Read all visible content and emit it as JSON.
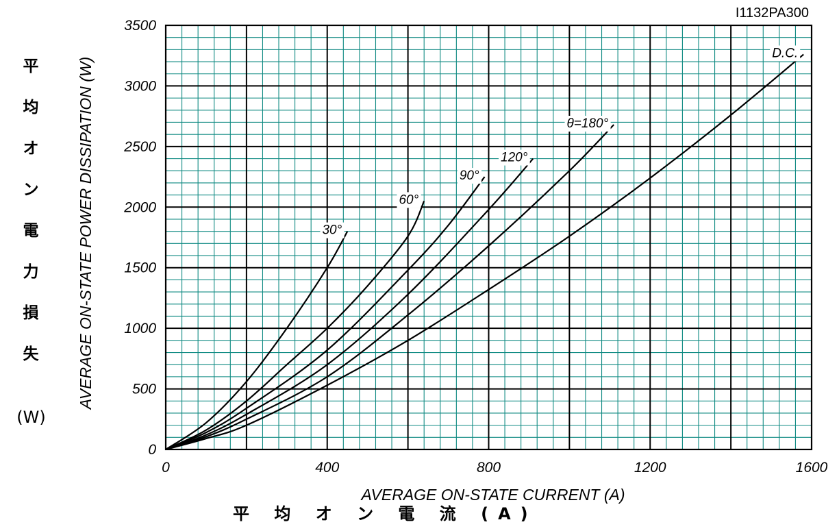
{
  "document_code": "I1132PA300",
  "jp_y_label": [
    "平",
    "均",
    "オ",
    "ン",
    "電",
    "力",
    "損",
    "失"
  ],
  "jp_y_unit": "(W)",
  "jp_x_label": "平 均 オ ン 電 流 (A)",
  "chart_data": {
    "type": "line",
    "xlabel": "AVERAGE ON-STATE CURRENT (A)",
    "ylabel": "AVERAGE ON-STATE POWER DISSIPATION (W)",
    "xlim": [
      0,
      1600
    ],
    "ylim": [
      0,
      3500
    ],
    "x_ticks": [
      0,
      400,
      800,
      1200,
      1600
    ],
    "y_ticks": [
      0,
      500,
      1000,
      1500,
      2000,
      2500,
      3000,
      3500
    ],
    "grid": true,
    "grid_color": "#0f8a82",
    "line_color": "#000000",
    "series": [
      {
        "name": "30°",
        "x": [
          0,
          100,
          200,
          300,
          400,
          450
        ],
        "y": [
          0,
          220,
          560,
          1000,
          1500,
          1800
        ]
      },
      {
        "name": "60°",
        "x": [
          0,
          100,
          200,
          300,
          400,
          500,
          600,
          640
        ],
        "y": [
          0,
          160,
          400,
          700,
          1000,
          1350,
          1760,
          2050
        ]
      },
      {
        "name": "90°",
        "x": [
          0,
          100,
          200,
          400,
          600,
          700,
          790
        ],
        "y": [
          0,
          140,
          340,
          820,
          1480,
          1850,
          2250
        ]
      },
      {
        "name": "120°",
        "x": [
          0,
          100,
          200,
          400,
          600,
          800,
          910
        ],
        "y": [
          0,
          120,
          290,
          700,
          1280,
          1980,
          2400
        ]
      },
      {
        "name": "θ=180°",
        "x": [
          0,
          100,
          200,
          400,
          600,
          800,
          1000,
          1110
        ],
        "y": [
          0,
          105,
          250,
          600,
          1110,
          1680,
          2300,
          2680
        ]
      },
      {
        "name": "D.C.",
        "x": [
          0,
          100,
          200,
          400,
          600,
          800,
          1000,
          1200,
          1400,
          1580
        ],
        "y": [
          0,
          90,
          200,
          530,
          900,
          1320,
          1760,
          2240,
          2760,
          3260
        ]
      }
    ]
  }
}
